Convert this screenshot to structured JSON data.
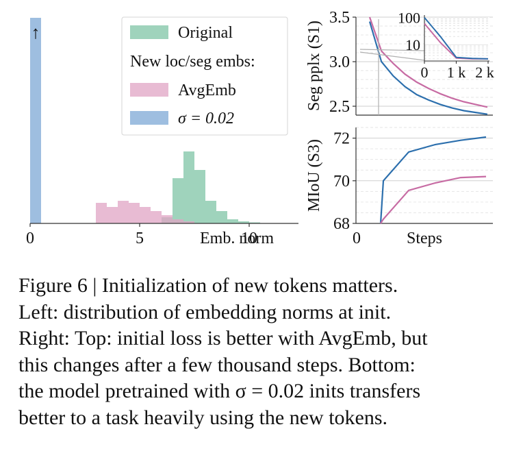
{
  "chart_data": [
    {
      "type": "histogram",
      "xlabel": "Emb. norm",
      "xticks": [
        0,
        5,
        10
      ],
      "xlim": [
        0,
        12
      ],
      "bin_edges": [
        0,
        0.5,
        1,
        1.5,
        2,
        2.5,
        3,
        3.5,
        4,
        4.5,
        5,
        5.5,
        6,
        6.5,
        7,
        7.5,
        8,
        8.5,
        9,
        9.5,
        10,
        10.5,
        11,
        11.5,
        12,
        12.5
      ],
      "legend": {
        "placement": "upper-right",
        "subtitle": "New loc/seg embs:"
      },
      "series": [
        {
          "name": "Original",
          "color": "#7fc4a6",
          "density": [
            0,
            0,
            0,
            0,
            0,
            0,
            0,
            0,
            0,
            0,
            0,
            0,
            0.03,
            0.22,
            0.35,
            0.26,
            0.11,
            0.06,
            0.02,
            0.01,
            0.005,
            0,
            0,
            0,
            0
          ]
        },
        {
          "name": "AvgEmb",
          "color": "#e0a4c4",
          "density": [
            0,
            0,
            0,
            0,
            0,
            0,
            0.1,
            0.08,
            0.11,
            0.1,
            0.08,
            0.06,
            0.04,
            0.02,
            0.01,
            0,
            0,
            0,
            0,
            0,
            0,
            0,
            0,
            0,
            0
          ]
        },
        {
          "name": "σ = 0.02",
          "color": "#8db3db",
          "density": [
            1.0,
            0,
            0,
            0,
            0,
            0,
            0,
            0,
            0,
            0,
            0,
            0,
            0,
            0,
            0,
            0,
            0,
            0,
            0,
            0,
            0,
            0,
            0,
            0,
            0
          ]
        }
      ],
      "annotation": "↑"
    },
    {
      "type": "line",
      "ylabel": "Seg pplx (S1)",
      "ylim": [
        2.4,
        3.5
      ],
      "yticks": [
        2.5,
        3.0,
        3.5
      ],
      "x": [
        0,
        1,
        2,
        3,
        4,
        5,
        6,
        7,
        8,
        9,
        10
      ],
      "series": [
        {
          "name": "AvgEmb",
          "color": "#c76ba3",
          "values": [
            3.5,
            3.12,
            2.98,
            2.86,
            2.77,
            2.7,
            2.64,
            2.59,
            2.55,
            2.52,
            2.49
          ]
        },
        {
          "name": "σ = 0.02",
          "color": "#2c6fad",
          "values": [
            3.45,
            3.0,
            2.84,
            2.72,
            2.63,
            2.57,
            2.52,
            2.48,
            2.45,
            2.43,
            2.41
          ]
        }
      ],
      "inset": {
        "xticks": [
          "0",
          "1 k",
          "2 k"
        ],
        "yticks": [
          "10",
          "100"
        ],
        "series": [
          {
            "name": "AvgEmb",
            "color": "#c76ba3",
            "x": [
              0,
              500,
              1000,
              1500,
              2000
            ],
            "values": [
              60,
              12,
              3.2,
              3.0,
              3.0
            ]
          },
          {
            "name": "σ = 0.02",
            "color": "#2c6fad",
            "x": [
              0,
              500,
              1000,
              1500,
              2000
            ],
            "values": [
              100,
              20,
              3.4,
              3.1,
              3.0
            ]
          }
        ]
      }
    },
    {
      "type": "line",
      "xlabel": "Steps",
      "ylabel": "MIoU (S3)",
      "ylim": [
        68,
        72.5
      ],
      "yticks": [
        68,
        70,
        72
      ],
      "xticks": [
        0
      ],
      "x": [
        0,
        1,
        2,
        3,
        4,
        5
      ],
      "series": [
        {
          "name": "σ = 0.02",
          "color": "#2c6fad",
          "values": [
            68,
            70.0,
            71.35,
            71.7,
            71.9,
            72.05
          ]
        },
        {
          "name": "AvgEmb",
          "color": "#c76ba3",
          "values": [
            68,
            68.2,
            69.55,
            69.9,
            70.15,
            70.2
          ]
        }
      ]
    }
  ],
  "caption": [
    "Figure 6 | Initialization of new tokens matters.",
    "Left:  distribution of embedding norms at init.",
    "Right: Top: initial loss is better with AvgEmb, but",
    "this changes after a few thousand steps. Bottom:",
    "the model pretrained with σ = 0.02 inits transfers",
    "better to a task heavily using the new tokens."
  ]
}
